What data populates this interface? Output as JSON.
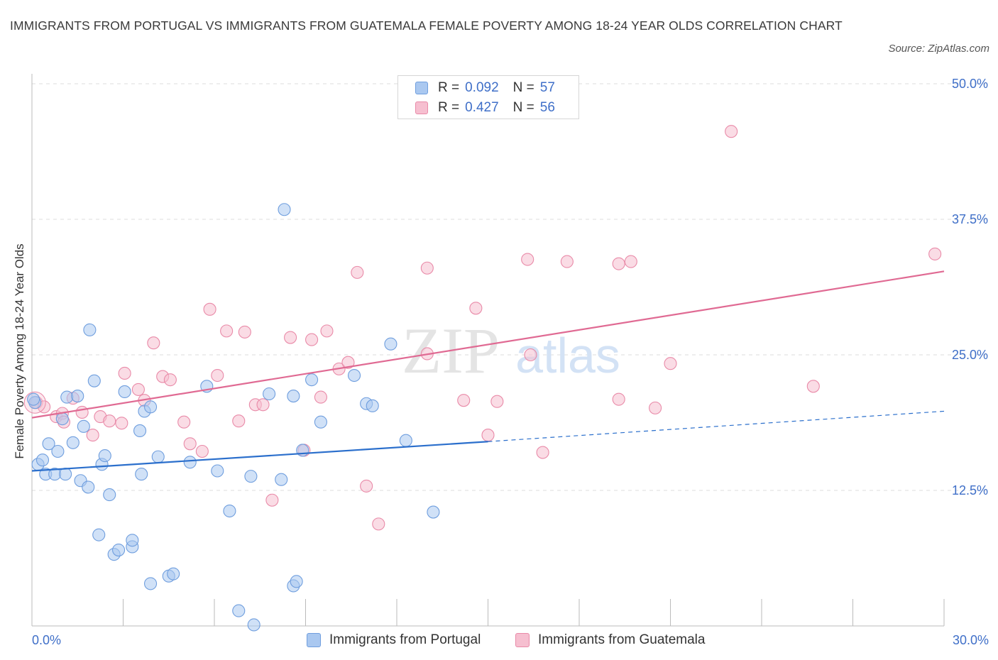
{
  "title": "IMMIGRANTS FROM PORTUGAL VS IMMIGRANTS FROM GUATEMALA FEMALE POVERTY AMONG 18-24 YEAR OLDS CORRELATION CHART",
  "source": "Source: ZipAtlas.com",
  "watermark": {
    "zip": "ZIP",
    "atlas": "atlas"
  },
  "colors": {
    "portugal_fill": "#aac8f0",
    "portugal_stroke": "#6f9ede",
    "portugal_line": "#2b6fcc",
    "guatemala_fill": "#f6bfd0",
    "guatemala_stroke": "#e98aa8",
    "guatemala_line": "#e06a93",
    "axis_label": "#3f6fc8",
    "grid": "#dddddd"
  },
  "legend": {
    "rows": [
      {
        "r_label": "R = ",
        "r_value": "0.092",
        "n_label": "N = ",
        "n_value": "57"
      },
      {
        "r_label": "R = ",
        "r_value": "0.427",
        "n_label": "N = ",
        "n_value": "56"
      }
    ]
  },
  "bottom_legend": {
    "portugal": "Immigrants from Portugal",
    "guatemala": "Immigrants from Guatemala"
  },
  "chart_data": {
    "type": "scatter",
    "title": "IMMIGRANTS FROM PORTUGAL VS IMMIGRANTS FROM GUATEMALA FEMALE POVERTY AMONG 18-24 YEAR OLDS CORRELATION CHART",
    "xlabel": "",
    "ylabel": "Female Poverty Among 18-24 Year Olds",
    "xlim": [
      0,
      30
    ],
    "ylim": [
      0,
      50
    ],
    "x_tick_labels": [
      "0.0%",
      "30.0%"
    ],
    "y_ticks": [
      12.5,
      25.0,
      37.5,
      50.0
    ],
    "y_tick_labels": [
      "12.5%",
      "25.0%",
      "37.5%",
      "50.0%"
    ],
    "grid": true,
    "legend_position": "top-center",
    "series": [
      {
        "name": "Immigrants from Portugal",
        "R": 0.092,
        "N": 57,
        "trend": {
          "x": [
            0,
            15
          ],
          "y": [
            14.3,
            17.0
          ],
          "dashed_extension_to": [
            30,
            19.8
          ]
        },
        "points": [
          [
            0.1,
            20.6
          ],
          [
            0.2,
            14.9
          ],
          [
            0.35,
            15.3
          ],
          [
            0.45,
            14.0
          ],
          [
            0.55,
            16.8
          ],
          [
            0.75,
            14.0
          ],
          [
            0.85,
            16.1
          ],
          [
            1.0,
            19.1
          ],
          [
            1.1,
            14.0
          ],
          [
            1.15,
            21.1
          ],
          [
            1.35,
            16.9
          ],
          [
            1.5,
            21.2
          ],
          [
            1.6,
            13.4
          ],
          [
            1.7,
            18.4
          ],
          [
            1.85,
            12.8
          ],
          [
            1.9,
            27.3
          ],
          [
            2.05,
            22.6
          ],
          [
            2.2,
            8.4
          ],
          [
            2.3,
            14.9
          ],
          [
            2.4,
            15.7
          ],
          [
            2.55,
            12.1
          ],
          [
            2.7,
            6.6
          ],
          [
            2.85,
            7.0
          ],
          [
            3.05,
            21.6
          ],
          [
            3.3,
            7.3
          ],
          [
            3.3,
            7.9
          ],
          [
            3.55,
            18.0
          ],
          [
            3.6,
            14.0
          ],
          [
            3.7,
            19.8
          ],
          [
            3.9,
            20.2
          ],
          [
            3.9,
            3.9
          ],
          [
            4.15,
            15.6
          ],
          [
            4.5,
            4.6
          ],
          [
            4.65,
            4.8
          ],
          [
            5.2,
            15.1
          ],
          [
            5.75,
            22.1
          ],
          [
            6.1,
            14.3
          ],
          [
            6.5,
            10.6
          ],
          [
            6.8,
            1.4
          ],
          [
            7.2,
            13.8
          ],
          [
            7.3,
            0.1
          ],
          [
            7.8,
            21.4
          ],
          [
            8.2,
            13.5
          ],
          [
            8.3,
            38.4
          ],
          [
            8.6,
            3.7
          ],
          [
            8.6,
            21.2
          ],
          [
            8.7,
            4.1
          ],
          [
            8.9,
            16.2
          ],
          [
            9.2,
            22.7
          ],
          [
            9.5,
            18.8
          ],
          [
            10.6,
            23.1
          ],
          [
            11.0,
            20.5
          ],
          [
            11.2,
            20.3
          ],
          [
            11.8,
            26.0
          ],
          [
            12.3,
            17.1
          ],
          [
            13.2,
            10.5
          ],
          [
            0.05,
            20.9
          ]
        ]
      },
      {
        "name": "Immigrants from Guatemala",
        "R": 0.427,
        "N": 56,
        "trend": {
          "x": [
            0,
            30
          ],
          "y": [
            19.2,
            32.7
          ]
        },
        "points": [
          [
            0.15,
            20.6
          ],
          [
            0.4,
            20.2
          ],
          [
            0.8,
            19.3
          ],
          [
            1.0,
            19.6
          ],
          [
            1.05,
            18.8
          ],
          [
            1.35,
            21.0
          ],
          [
            1.65,
            19.7
          ],
          [
            2.0,
            17.6
          ],
          [
            2.25,
            19.3
          ],
          [
            2.55,
            18.9
          ],
          [
            2.95,
            18.7
          ],
          [
            3.05,
            23.3
          ],
          [
            3.5,
            21.8
          ],
          [
            3.7,
            20.8
          ],
          [
            4.0,
            26.1
          ],
          [
            4.3,
            23.0
          ],
          [
            4.55,
            22.7
          ],
          [
            5.0,
            18.8
          ],
          [
            5.2,
            16.8
          ],
          [
            5.6,
            16.1
          ],
          [
            5.85,
            29.2
          ],
          [
            6.1,
            23.1
          ],
          [
            6.4,
            27.2
          ],
          [
            6.8,
            18.9
          ],
          [
            7.0,
            27.1
          ],
          [
            7.35,
            20.4
          ],
          [
            7.6,
            20.4
          ],
          [
            7.9,
            11.6
          ],
          [
            8.5,
            26.6
          ],
          [
            8.95,
            16.2
          ],
          [
            9.2,
            26.4
          ],
          [
            9.5,
            21.1
          ],
          [
            9.7,
            27.2
          ],
          [
            10.1,
            23.7
          ],
          [
            10.4,
            24.3
          ],
          [
            10.7,
            32.6
          ],
          [
            11.0,
            12.9
          ],
          [
            11.4,
            9.4
          ],
          [
            13.0,
            33.0
          ],
          [
            13.0,
            25.1
          ],
          [
            14.2,
            20.8
          ],
          [
            14.6,
            29.3
          ],
          [
            15.0,
            17.6
          ],
          [
            15.3,
            20.7
          ],
          [
            16.3,
            33.8
          ],
          [
            16.4,
            25.0
          ],
          [
            16.8,
            16.0
          ],
          [
            17.6,
            33.6
          ],
          [
            19.3,
            33.4
          ],
          [
            19.3,
            20.9
          ],
          [
            19.7,
            33.6
          ],
          [
            20.5,
            20.1
          ],
          [
            21.0,
            24.2
          ],
          [
            23.0,
            45.6
          ],
          [
            25.7,
            22.1
          ],
          [
            29.7,
            34.3
          ]
        ]
      }
    ]
  }
}
